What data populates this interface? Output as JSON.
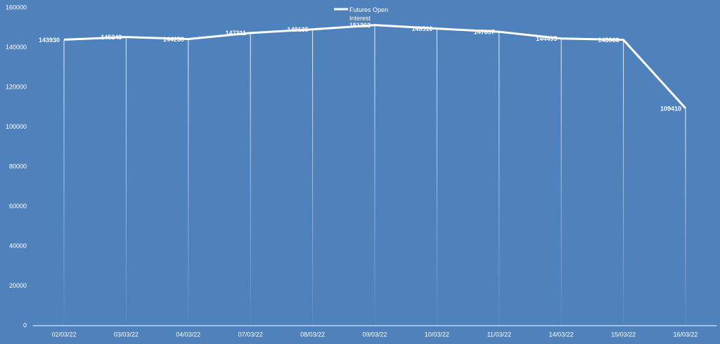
{
  "chart_data": {
    "type": "line",
    "categories": [
      "02/03/22",
      "03/03/22",
      "04/03/22",
      "07/03/22",
      "08/03/22",
      "09/03/22",
      "10/03/22",
      "11/03/22",
      "14/03/22",
      "15/03/22",
      "16/03/22"
    ],
    "series": [
      {
        "name": "Futures Open Interest",
        "color": "#ffffff",
        "values": [
          143930,
          145249,
          144258,
          147311,
          149135,
          151262,
          149510,
          147897,
          144495,
          143863,
          109410
        ]
      }
    ],
    "ylim": [
      0,
      160000
    ],
    "yticks": [
      0,
      20000,
      40000,
      60000,
      80000,
      100000,
      120000,
      140000,
      160000
    ],
    "grid": false,
    "drop_lines": true,
    "legend": "top"
  }
}
